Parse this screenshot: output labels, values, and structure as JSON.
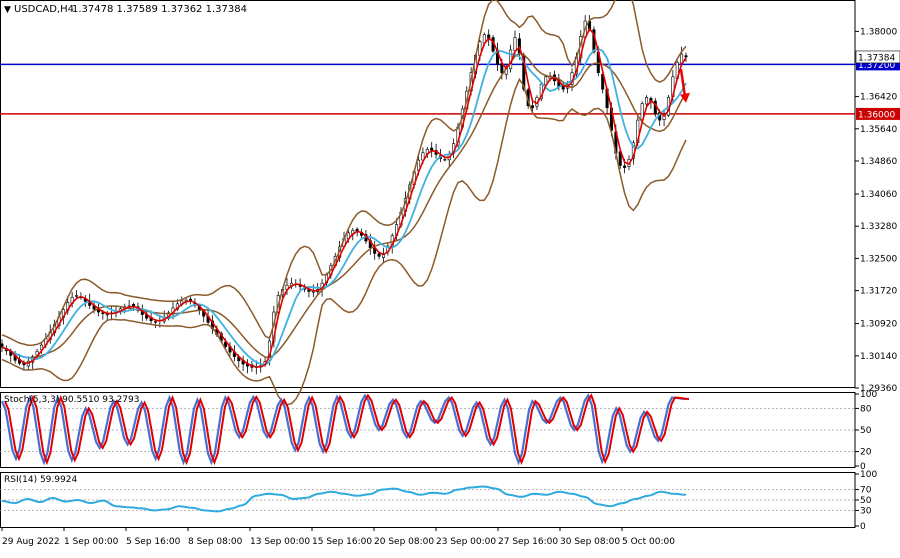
{
  "header": {
    "symbol": "USDCAD,H4",
    "ohlc": "1.37478 1.37589 1.37362 1.37384"
  },
  "chart_data": [
    {
      "type": "candlestick",
      "panel": "price",
      "symbol": "USDCAD",
      "timeframe": "H4",
      "ylim": [
        1.2936,
        1.3876
      ],
      "y_ticks": [
        "1.38000",
        "1.37200",
        "1.36420",
        "1.35640",
        "1.34860",
        "1.34060",
        "1.33280",
        "1.32500",
        "1.31720",
        "1.30920",
        "1.30140",
        "1.29360"
      ],
      "x_ticks": [
        "29 Aug 2022",
        "1 Sep 00:00",
        "5 Sep 16:00",
        "8 Sep 08:00",
        "13 Sep 00:00",
        "15 Sep 16:00",
        "20 Sep 08:00",
        "23 Sep 00:00",
        "27 Sep 16:00",
        "30 Sep 08:00",
        "5 Oct 00:00"
      ],
      "current_price_label": "1.37384",
      "levels": [
        {
          "value": 1.372,
          "label": "1.37200",
          "color": "#0000cc"
        },
        {
          "value": 1.36,
          "label": "1.36000",
          "color": "#cc0000"
        }
      ],
      "series_colors": {
        "bollinger": "#8b5a2b",
        "ma_fast": "#e00000",
        "ma_slow": "#40b0e0",
        "bull": "#000000",
        "bear": "#000000"
      },
      "arrow": {
        "color": "#ee0000",
        "direction": "down",
        "from": 1.3708,
        "to": 1.3632
      },
      "closes": [
        1.3035,
        1.3026,
        1.3015,
        1.3003,
        1.2996,
        1.2992,
        1.3001,
        1.3012,
        1.3025,
        1.304,
        1.3056,
        1.3072,
        1.309,
        1.3108,
        1.3126,
        1.3143,
        1.3156,
        1.316,
        1.3155,
        1.3146,
        1.3136,
        1.3127,
        1.312,
        1.3116,
        1.3115,
        1.3117,
        1.3122,
        1.3128,
        1.3133,
        1.3135,
        1.3132,
        1.3124,
        1.3114,
        1.3105,
        1.3099,
        1.3097,
        1.31,
        1.3108,
        1.3118,
        1.313,
        1.314,
        1.3147,
        1.3149,
        1.3145,
        1.3136,
        1.3124,
        1.311,
        1.3095,
        1.308,
        1.3065,
        1.305,
        1.3036,
        1.3023,
        1.3012,
        1.3002,
        1.2994,
        1.2989,
        1.2986,
        1.2986,
        1.299,
        1.3,
        1.305,
        1.312,
        1.316,
        1.3175,
        1.3185,
        1.319,
        1.3188,
        1.3182,
        1.3175,
        1.317,
        1.317,
        1.3175,
        1.319,
        1.321,
        1.3232,
        1.3255,
        1.3278,
        1.3298,
        1.3312,
        1.3318,
        1.3315,
        1.3306,
        1.3292,
        1.3276,
        1.3262,
        1.3255,
        1.3262,
        1.328,
        1.3305,
        1.3332,
        1.3362,
        1.3395,
        1.3428,
        1.346,
        1.3488,
        1.3506,
        1.3514,
        1.3512,
        1.3502,
        1.3492,
        1.349,
        1.3502,
        1.3528,
        1.3568,
        1.3612,
        1.3655,
        1.37,
        1.3742,
        1.3775,
        1.3792,
        1.3782,
        1.3752,
        1.372,
        1.37,
        1.3713,
        1.3755,
        1.3785,
        1.3745,
        1.366,
        1.362,
        1.3615,
        1.364,
        1.3672,
        1.369,
        1.3692,
        1.368,
        1.3666,
        1.366,
        1.3672,
        1.37,
        1.3738,
        1.3788,
        1.3825,
        1.3805,
        1.375,
        1.37,
        1.366,
        1.3615,
        1.356,
        1.3505,
        1.3475,
        1.347,
        1.349,
        1.353,
        1.3585,
        1.3625,
        1.364,
        1.363,
        1.36,
        1.3585,
        1.36,
        1.364,
        1.369,
        1.3725,
        1.3745,
        1.3738
      ]
    },
    {
      "type": "line",
      "panel": "oscillator",
      "name": "Stoch(5,3,3) 90.5510 93.2793",
      "ylim": [
        0,
        100
      ],
      "y_ticks": [
        100,
        80,
        50,
        20,
        0
      ],
      "levels": [
        80,
        50,
        20
      ],
      "series_colors": [
        "#4a6fd4",
        "#e00000"
      ],
      "peaks": [
        90,
        10,
        95,
        5,
        95,
        8,
        80,
        25,
        90,
        30,
        88,
        10,
        95,
        5,
        92,
        5,
        95,
        40,
        96,
        40,
        92,
        22,
        95,
        20,
        96,
        40,
        98,
        50,
        92,
        40,
        90,
        60,
        95,
        42,
        88,
        30,
        92,
        5,
        90,
        60,
        95,
        50,
        98,
        6,
        80,
        20,
        75,
        35,
        95,
        93
      ]
    },
    {
      "type": "line",
      "panel": "oscillator",
      "name": "RSI(14) 59.9924",
      "ylim": [
        0,
        100
      ],
      "y_ticks": [
        100,
        70,
        50,
        30,
        0
      ],
      "levels": [
        70,
        50,
        30
      ],
      "series_colors": [
        "#2eaadf"
      ],
      "peaks": [
        48,
        44,
        52,
        46,
        54,
        47,
        50,
        44,
        49,
        38,
        36,
        34,
        30,
        32,
        38,
        35,
        30,
        28,
        33,
        40,
        58,
        62,
        60,
        52,
        54,
        62,
        66,
        62,
        58,
        61,
        70,
        72,
        66,
        60,
        64,
        62,
        70,
        74,
        76,
        72,
        60,
        56,
        62,
        60,
        66,
        62,
        56,
        42,
        38,
        44,
        52,
        58,
        66,
        62,
        60
      ]
    }
  ]
}
